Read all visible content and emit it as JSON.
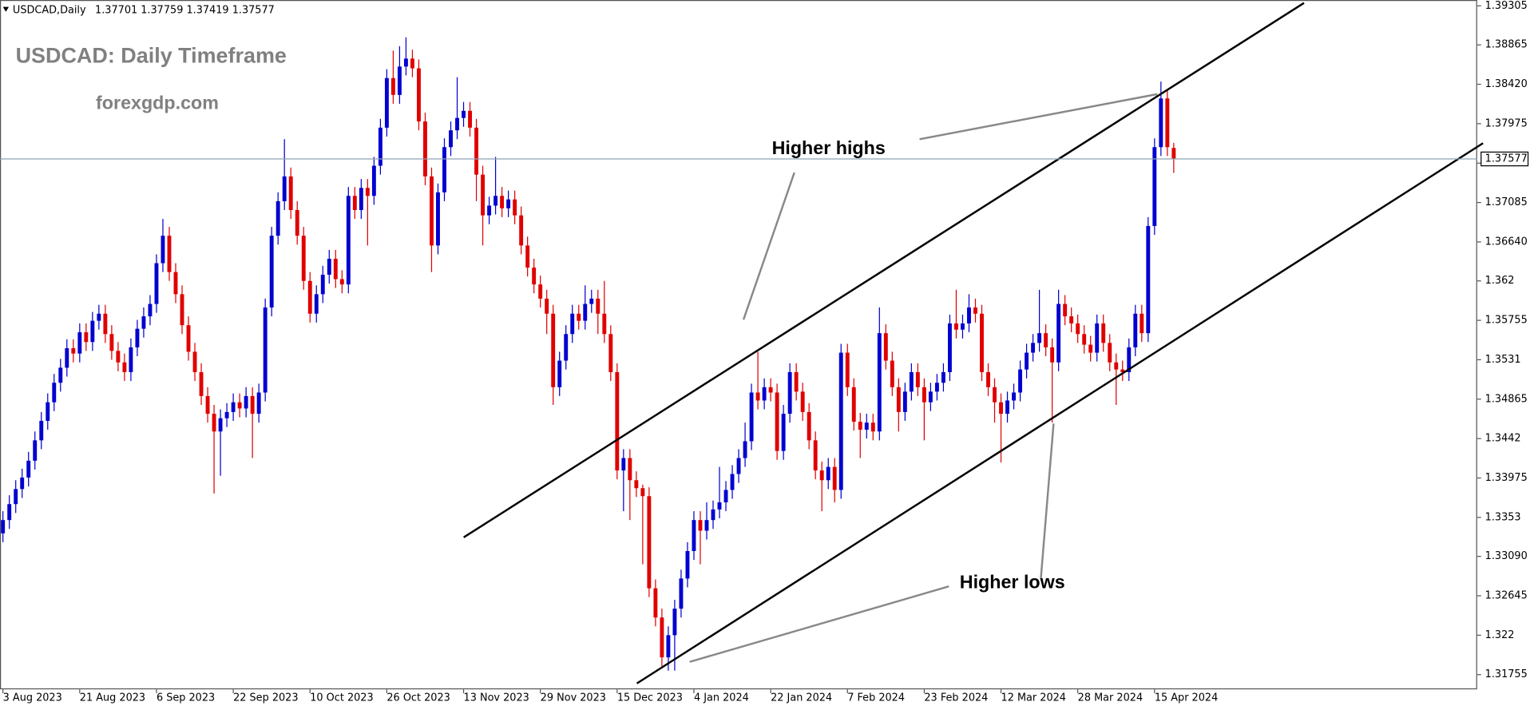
{
  "chart_data": {
    "type": "candlestick",
    "symbol": "USDCAD,Daily",
    "title": "USDCAD: Daily Timeframe",
    "subtitle": "forexgdp.com",
    "annotations": [
      "Higher highs",
      "Higher lows"
    ],
    "up_color": "#0000d0",
    "down_color": "#e00000",
    "current_price_color": "#8fa3b3",
    "current_price": 1.37577,
    "ylim": [
      1.31755,
      1.39305
    ],
    "yticks": [
      {
        "value": 1.31755,
        "label": "1.31755"
      },
      1.322,
      {
        "value": 1.32645,
        "label": "1.32645"
      },
      {
        "value": 1.3309,
        "label": "1.33090"
      },
      1.3353,
      {
        "value": 1.33975,
        "label": "1.33975"
      },
      1.3442,
      {
        "value": 1.34865,
        "label": "1.34865"
      },
      1.3531,
      {
        "value": 1.35755,
        "label": "1.35755"
      },
      1.362,
      {
        "value": 1.3664,
        "label": "1.36640"
      },
      {
        "value": 1.37085,
        "label": "1.37085"
      },
      {
        "value": 1.3753,
        "label": "1.37530"
      },
      {
        "value": 1.37975,
        "label": "1.37975"
      },
      {
        "value": 1.3842,
        "label": "1.38420"
      },
      {
        "value": 1.38865,
        "label": "1.38865"
      },
      1.39305
    ],
    "categories": [
      "3 Aug 2023",
      null,
      null,
      null,
      null,
      null,
      null,
      null,
      null,
      null,
      null,
      null,
      "21 Aug 2023",
      null,
      null,
      null,
      null,
      null,
      null,
      null,
      null,
      null,
      null,
      null,
      "6 Sep 2023",
      null,
      null,
      null,
      null,
      null,
      null,
      null,
      null,
      null,
      null,
      null,
      "22 Sep 2023",
      null,
      null,
      null,
      null,
      null,
      null,
      null,
      null,
      null,
      null,
      null,
      "10 Oct 2023",
      null,
      null,
      null,
      null,
      null,
      null,
      null,
      null,
      null,
      null,
      null,
      "26 Oct 2023",
      null,
      null,
      null,
      null,
      null,
      null,
      null,
      null,
      null,
      null,
      null,
      "13 Nov 2023",
      null,
      null,
      null,
      null,
      null,
      null,
      null,
      null,
      null,
      null,
      null,
      "29 Nov 2023",
      null,
      null,
      null,
      null,
      null,
      null,
      null,
      null,
      null,
      null,
      null,
      "15 Dec 2023",
      null,
      null,
      null,
      null,
      null,
      null,
      null,
      null,
      null,
      null,
      null,
      "4 Jan 2024",
      null,
      null,
      null,
      null,
      null,
      null,
      null,
      null,
      null,
      null,
      null,
      "22 Jan 2024",
      null,
      null,
      null,
      null,
      null,
      null,
      null,
      null,
      null,
      null,
      null,
      "7 Feb 2024",
      null,
      null,
      null,
      null,
      null,
      null,
      null,
      null,
      null,
      null,
      null,
      "23 Feb 2024",
      null,
      null,
      null,
      null,
      null,
      null,
      null,
      null,
      null,
      null,
      null,
      "12 Mar 2024",
      null,
      null,
      null,
      null,
      null,
      null,
      null,
      null,
      null,
      null,
      null,
      "28 Mar 2024",
      null,
      null,
      null,
      null,
      null,
      null,
      null,
      null,
      null,
      null,
      null,
      "15 Apr 2024",
      null,
      null,
      null
    ],
    "open": [
      1.3335,
      1.335,
      1.3368,
      1.3385,
      1.3398,
      1.3417,
      1.344,
      1.3462,
      1.3483,
      1.3505,
      1.3522,
      1.3544,
      1.3538,
      1.3562,
      1.3551,
      1.3575,
      1.3583,
      1.356,
      1.3541,
      1.3528,
      1.3517,
      1.3545,
      1.3566,
      1.358,
      1.3594,
      1.364,
      1.3671,
      1.363,
      1.3605,
      1.357,
      1.354,
      1.3517,
      1.349,
      1.347,
      1.345,
      1.3465,
      1.3472,
      1.3483,
      1.3476,
      1.349,
      1.347,
      1.3494,
      1.359,
      1.3671,
      1.371,
      1.3738,
      1.37,
      1.3671,
      1.362,
      1.3583,
      1.3605,
      1.3627,
      1.3645,
      1.3622,
      1.3616,
      1.3716,
      1.37,
      1.3725,
      1.3716,
      1.375,
      1.3793,
      1.3849,
      1.383,
      1.3862,
      1.3871,
      1.386,
      1.38,
      1.3738,
      1.366,
      1.372,
      1.3771,
      1.379,
      1.3804,
      1.3812,
      1.3793,
      1.374,
      1.3694,
      1.3705,
      1.3716,
      1.3702,
      1.3712,
      1.3694,
      1.366,
      1.3635,
      1.3616,
      1.36,
      1.3583,
      1.35,
      1.353,
      1.356,
      1.3583,
      1.3575,
      1.3594,
      1.36,
      1.3583,
      1.356,
      1.3517,
      1.3406,
      1.342,
      1.3395,
      1.3386,
      1.3377,
      1.3273,
      1.324,
      1.3195,
      1.322,
      1.325,
      1.3284,
      1.3315,
      1.335,
      1.3338,
      1.335,
      1.3362,
      1.337,
      1.3384,
      1.3402,
      1.342,
      1.3439,
      1.3494,
      1.3485,
      1.35,
      1.3494,
      1.3428,
      1.347,
      1.3517,
      1.3495,
      1.3472,
      1.344,
      1.3406,
      1.3395,
      1.341,
      1.3384,
      1.3539,
      1.35,
      1.3461,
      1.3452,
      1.346,
      1.345,
      1.3561,
      1.353,
      1.35,
      1.3472,
      1.3495,
      1.3517,
      1.35,
      1.3483,
      1.3495,
      1.3505,
      1.3517,
      1.3572,
      1.3565,
      1.3572,
      1.359,
      1.3583,
      1.3517,
      1.35,
      1.3483,
      1.347,
      1.3485,
      1.3494,
      1.352,
      1.3539,
      1.355,
      1.3561,
      1.3545,
      1.3528,
      1.3594,
      1.358,
      1.3572,
      1.356,
      1.3548,
      1.3539,
      1.3572,
      1.355,
      1.3528,
      1.352,
      1.3517,
      1.3545,
      1.3583,
      1.3561,
      1.3682,
      1.3771,
      1.3826,
      1.37701
    ],
    "high": [
      1.336,
      1.3378,
      1.3395,
      1.3408,
      1.3427,
      1.345,
      1.3472,
      1.3493,
      1.3515,
      1.3532,
      1.3554,
      1.3554,
      1.3572,
      1.3572,
      1.3585,
      1.3593,
      1.3593,
      1.357,
      1.3551,
      1.3538,
      1.3555,
      1.3576,
      1.359,
      1.3604,
      1.365,
      1.369,
      1.3681,
      1.364,
      1.3615,
      1.358,
      1.355,
      1.3527,
      1.35,
      1.348,
      1.3475,
      1.3482,
      1.3493,
      1.3493,
      1.35,
      1.35,
      1.3504,
      1.36,
      1.3681,
      1.372,
      1.378,
      1.3748,
      1.371,
      1.3681,
      1.363,
      1.3615,
      1.3637,
      1.3655,
      1.3655,
      1.3632,
      1.3726,
      1.3726,
      1.3735,
      1.3735,
      1.376,
      1.3803,
      1.3859,
      1.388,
      1.3885,
      1.3895,
      1.3881,
      1.387,
      1.381,
      1.3748,
      1.373,
      1.3781,
      1.38,
      1.385,
      1.3822,
      1.3822,
      1.3803,
      1.375,
      1.3715,
      1.376,
      1.3726,
      1.3722,
      1.3722,
      1.3704,
      1.367,
      1.3645,
      1.3626,
      1.361,
      1.3593,
      1.354,
      1.357,
      1.3593,
      1.3593,
      1.3615,
      1.361,
      1.361,
      1.362,
      1.357,
      1.3527,
      1.343,
      1.343,
      1.3405,
      1.339,
      1.3387,
      1.3283,
      1.325,
      1.323,
      1.326,
      1.3294,
      1.3325,
      1.336,
      1.336,
      1.337,
      1.3372,
      1.341,
      1.3394,
      1.3412,
      1.343,
      1.346,
      1.3504,
      1.354,
      1.351,
      1.351,
      1.3504,
      1.348,
      1.3527,
      1.3527,
      1.3505,
      1.3482,
      1.345,
      1.3416,
      1.342,
      1.342,
      1.3549,
      1.3549,
      1.351,
      1.3471,
      1.347,
      1.347,
      1.359,
      1.3571,
      1.354,
      1.351,
      1.3505,
      1.3527,
      1.3527,
      1.351,
      1.3505,
      1.3515,
      1.3527,
      1.3582,
      1.361,
      1.3582,
      1.3605,
      1.36,
      1.3593,
      1.3527,
      1.351,
      1.3493,
      1.3495,
      1.3504,
      1.353,
      1.3549,
      1.356,
      1.361,
      1.3571,
      1.3555,
      1.361,
      1.3604,
      1.359,
      1.3582,
      1.357,
      1.3558,
      1.3582,
      1.3582,
      1.356,
      1.3538,
      1.353,
      1.3555,
      1.3593,
      1.3593,
      1.3692,
      1.3781,
      1.3845,
      1.3836,
      1.37759
    ],
    "low": [
      1.3325,
      1.334,
      1.3358,
      1.3375,
      1.3388,
      1.3407,
      1.343,
      1.3452,
      1.3473,
      1.3495,
      1.3512,
      1.3528,
      1.3528,
      1.3541,
      1.3541,
      1.3565,
      1.355,
      1.3531,
      1.3518,
      1.3507,
      1.3507,
      1.3535,
      1.3556,
      1.357,
      1.3584,
      1.363,
      1.362,
      1.3595,
      1.356,
      1.353,
      1.3507,
      1.348,
      1.346,
      1.338,
      1.34,
      1.3455,
      1.3462,
      1.3466,
      1.3466,
      1.342,
      1.346,
      1.3484,
      1.358,
      1.3661,
      1.37,
      1.369,
      1.3661,
      1.361,
      1.3573,
      1.3573,
      1.3595,
      1.3617,
      1.3612,
      1.3606,
      1.3606,
      1.369,
      1.369,
      1.366,
      1.3706,
      1.374,
      1.3783,
      1.382,
      1.382,
      1.3852,
      1.385,
      1.379,
      1.3728,
      1.363,
      1.365,
      1.371,
      1.3761,
      1.378,
      1.3794,
      1.3783,
      1.371,
      1.366,
      1.3684,
      1.3695,
      1.3692,
      1.3692,
      1.3684,
      1.365,
      1.3625,
      1.3606,
      1.359,
      1.356,
      1.348,
      1.349,
      1.352,
      1.355,
      1.3565,
      1.3565,
      1.3584,
      1.356,
      1.355,
      1.3507,
      1.3396,
      1.336,
      1.335,
      1.3376,
      1.33,
      1.3263,
      1.323,
      1.3185,
      1.318,
      1.318,
      1.324,
      1.3274,
      1.3305,
      1.33,
      1.3328,
      1.334,
      1.3352,
      1.336,
      1.3374,
      1.3392,
      1.341,
      1.3429,
      1.3475,
      1.3475,
      1.3484,
      1.3418,
      1.3418,
      1.346,
      1.3485,
      1.3462,
      1.343,
      1.3396,
      1.336,
      1.3385,
      1.337,
      1.3374,
      1.349,
      1.3451,
      1.342,
      1.3442,
      1.344,
      1.344,
      1.352,
      1.349,
      1.345,
      1.3462,
      1.3485,
      1.349,
      1.344,
      1.3473,
      1.3485,
      1.3495,
      1.3507,
      1.3555,
      1.3555,
      1.3562,
      1.3573,
      1.3507,
      1.349,
      1.346,
      1.3415,
      1.346,
      1.3475,
      1.3484,
      1.351,
      1.3529,
      1.354,
      1.3535,
      1.346,
      1.3518,
      1.357,
      1.3562,
      1.355,
      1.3538,
      1.3529,
      1.3529,
      1.354,
      1.3518,
      1.348,
      1.3507,
      1.3507,
      1.3535,
      1.3551,
      1.3551,
      1.3672,
      1.3761,
      1.3761,
      1.37419
    ],
    "close": [
      1.335,
      1.3368,
      1.3385,
      1.3398,
      1.3417,
      1.344,
      1.3462,
      1.3483,
      1.3505,
      1.3522,
      1.3544,
      1.3538,
      1.3562,
      1.3551,
      1.3575,
      1.3583,
      1.356,
      1.3541,
      1.3528,
      1.3517,
      1.3545,
      1.3566,
      1.358,
      1.3594,
      1.364,
      1.3671,
      1.363,
      1.3605,
      1.357,
      1.354,
      1.3517,
      1.349,
      1.347,
      1.345,
      1.3465,
      1.3472,
      1.3483,
      1.3476,
      1.349,
      1.347,
      1.3494,
      1.359,
      1.3671,
      1.371,
      1.3738,
      1.37,
      1.3671,
      1.362,
      1.3583,
      1.3605,
      1.3627,
      1.3645,
      1.3622,
      1.3616,
      1.3716,
      1.37,
      1.3725,
      1.3716,
      1.375,
      1.3793,
      1.3849,
      1.383,
      1.3862,
      1.3871,
      1.386,
      1.38,
      1.3738,
      1.366,
      1.372,
      1.3771,
      1.379,
      1.3804,
      1.3812,
      1.3793,
      1.374,
      1.3694,
      1.3705,
      1.3716,
      1.3702,
      1.3712,
      1.3694,
      1.366,
      1.3635,
      1.3616,
      1.36,
      1.3583,
      1.35,
      1.353,
      1.356,
      1.3583,
      1.3575,
      1.3594,
      1.36,
      1.3583,
      1.356,
      1.3517,
      1.3406,
      1.342,
      1.3395,
      1.3386,
      1.3377,
      1.3273,
      1.324,
      1.3195,
      1.322,
      1.325,
      1.3284,
      1.3315,
      1.335,
      1.3338,
      1.335,
      1.3362,
      1.337,
      1.3384,
      1.3402,
      1.342,
      1.3439,
      1.3494,
      1.3485,
      1.35,
      1.3494,
      1.3428,
      1.347,
      1.3517,
      1.3495,
      1.3472,
      1.344,
      1.3406,
      1.3395,
      1.341,
      1.3384,
      1.3539,
      1.35,
      1.3461,
      1.3452,
      1.346,
      1.345,
      1.3561,
      1.353,
      1.35,
      1.3472,
      1.3495,
      1.3517,
      1.35,
      1.3483,
      1.3495,
      1.3505,
      1.3517,
      1.3572,
      1.3565,
      1.3572,
      1.359,
      1.3583,
      1.3517,
      1.35,
      1.3483,
      1.347,
      1.3485,
      1.3494,
      1.352,
      1.3539,
      1.355,
      1.3561,
      1.3545,
      1.3528,
      1.3594,
      1.358,
      1.3572,
      1.356,
      1.3548,
      1.3539,
      1.3572,
      1.355,
      1.3528,
      1.352,
      1.3517,
      1.3545,
      1.3583,
      1.3561,
      1.3682,
      1.3771,
      1.3826,
      1.3771,
      1.37577
    ]
  }
}
